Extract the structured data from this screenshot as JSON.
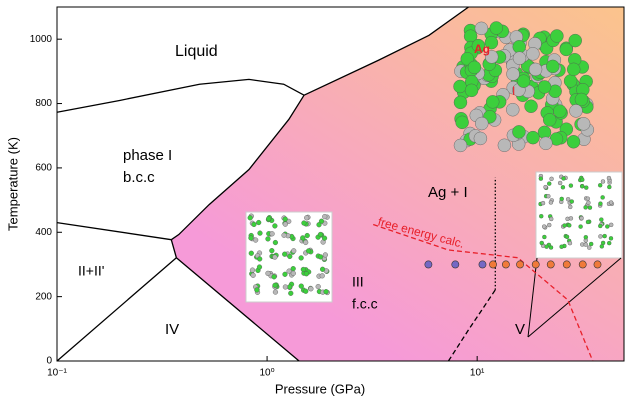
{
  "chart_data": {
    "type": "phase_diagram",
    "xlabel": "Pressure (GPa)",
    "ylabel": "Temperature (K)",
    "xscale": "log",
    "xlim": [
      0.1,
      50
    ],
    "ylim": [
      0,
      1100
    ],
    "xticks": [
      {
        "value": 0.1,
        "label": "10⁻¹"
      },
      {
        "value": 1,
        "label": "10⁰"
      },
      {
        "value": 10,
        "label": "10¹"
      }
    ],
    "yticks": [
      0,
      200,
      400,
      600,
      800,
      1000
    ],
    "labels": [
      "Liquid",
      "phase I",
      "b.c.c",
      "Ag + I",
      "II+II'",
      "IV",
      "III",
      "f.c.c",
      "V",
      "free energy calc.",
      "Ag",
      "I"
    ],
    "boundaries": [
      {
        "x": [
          0.1,
          0.2,
          0.477,
          0.82,
          1.2,
          1.5
        ],
        "y": [
          773,
          810,
          860,
          875,
          860,
          826
        ],
        "color": "#000000",
        "style": "solid"
      },
      {
        "x": [
          1.5,
          3.4,
          5.9,
          9.1
        ],
        "y": [
          826,
          935,
          1012,
          1100
        ],
        "color": "#000000",
        "style": "solid"
      },
      {
        "x": [
          1.5,
          1.27,
          0.82,
          0.53,
          0.38,
          0.35
        ],
        "y": [
          826,
          751,
          595,
          486,
          393,
          377
        ],
        "color": "#000000",
        "style": "solid"
      },
      {
        "x": [
          0.1,
          0.35
        ],
        "y": [
          430,
          377
        ],
        "color": "#000000",
        "style": "solid"
      },
      {
        "x": [
          0.35,
          0.37
        ],
        "y": [
          377,
          321
        ],
        "color": "#000000",
        "style": "solid"
      },
      {
        "x": [
          0.37,
          0.1
        ],
        "y": [
          321,
          0
        ],
        "color": "#000000",
        "style": "solid"
      },
      {
        "x": [
          0.37,
          1.42
        ],
        "y": [
          321,
          0
        ],
        "color": "#000000",
        "style": "solid"
      },
      {
        "x": [
          7.3,
          9.1,
          12.2
        ],
        "y": [
          0,
          97,
          221
        ],
        "color": "#000000",
        "style": "dashed"
      },
      {
        "x": [
          12.2,
          12.2
        ],
        "y": [
          221,
          570
        ],
        "color": "#000000",
        "style": "dotted"
      },
      {
        "x": [
          3.2,
          7.3,
          15.6,
          27,
          35.5
        ],
        "y": [
          424,
          345,
          321,
          190,
          0
        ],
        "color": "#e8202a",
        "style": "dashed"
      }
    ],
    "points": {
      "x": [
        5.86,
        7.87,
        10.6,
        11.9,
        13.7,
        16.0,
        19.0,
        22.4,
        26.7,
        31.8,
        37.4
      ],
      "y": [
        300,
        300,
        300,
        300,
        300,
        300,
        300,
        300,
        300,
        300,
        300
      ],
      "colors": [
        "#7468c4",
        "#7468c4",
        "#7468c4",
        "#f07a3a",
        "#f07a3a",
        "#f07a3a",
        "#f07a3a",
        "#f07a3a",
        "#f07a3a",
        "#f07a3a",
        "#f07a3a"
      ]
    }
  }
}
